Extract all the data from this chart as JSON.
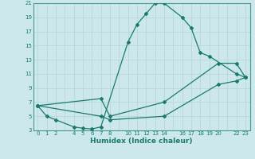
{
  "xlabel": "Humidex (Indice chaleur)",
  "bg_color": "#cce8ec",
  "grid_color": "#b8d8dc",
  "line_color": "#1a7a6e",
  "spine_color": "#4a9a8e",
  "xlim": [
    -0.5,
    23.5
  ],
  "ylim": [
    3,
    21
  ],
  "yticks": [
    3,
    5,
    7,
    9,
    11,
    13,
    15,
    17,
    19,
    21
  ],
  "xticks": [
    0,
    1,
    2,
    4,
    5,
    6,
    7,
    8,
    10,
    11,
    12,
    13,
    14,
    16,
    17,
    18,
    19,
    20,
    22,
    23
  ],
  "xtick_labels": [
    "0",
    "1",
    "2",
    "4",
    "5",
    "6",
    "7",
    "8",
    "10",
    "11",
    "12",
    "13",
    "14",
    "16",
    "17",
    "18",
    "19",
    "20",
    "22",
    "23"
  ],
  "series1_x": [
    0,
    1,
    2,
    4,
    5,
    6,
    7,
    10,
    11,
    12,
    13,
    14,
    16,
    17,
    18,
    19,
    22,
    23
  ],
  "series1_y": [
    6.5,
    5.0,
    4.5,
    3.5,
    3.3,
    3.2,
    3.5,
    15.5,
    18.0,
    19.5,
    21.0,
    21.0,
    19.0,
    17.5,
    14.0,
    13.5,
    11.0,
    10.5
  ],
  "series2_x": [
    0,
    7,
    8,
    14,
    20,
    22,
    23
  ],
  "series2_y": [
    6.5,
    7.5,
    5.0,
    7.0,
    12.5,
    12.5,
    10.5
  ],
  "series3_x": [
    0,
    7,
    8,
    14,
    20,
    22,
    23
  ],
  "series3_y": [
    6.5,
    5.0,
    4.5,
    5.0,
    9.5,
    10.0,
    10.5
  ],
  "marker": "D",
  "markersize": 2.0,
  "linewidth": 0.9
}
